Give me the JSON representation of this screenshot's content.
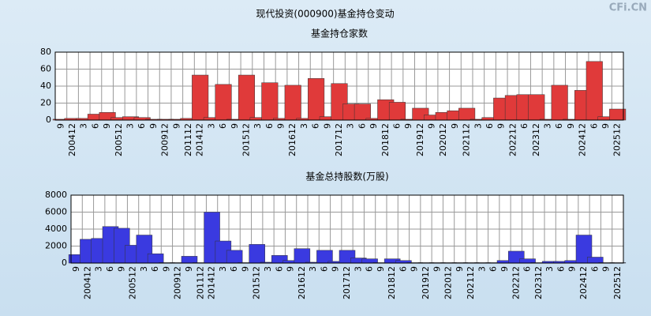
{
  "title": "现代投资(000900)基金持仓变动",
  "watermark": "CFi.CN",
  "chart_data": [
    {
      "type": "bar",
      "title": "基金持仓家数",
      "color": "#e03a3a",
      "grid": true,
      "categories": [
        "9",
        "200412",
        "3",
        "6",
        "9",
        "200512",
        "3",
        "6",
        "9",
        "200912",
        "9",
        "201112",
        "201412",
        "3",
        "6",
        "9",
        "201512",
        "3",
        "6",
        "9",
        "201612",
        "3",
        "6",
        "9",
        "201712",
        "3",
        "6",
        "9",
        "201812",
        "6",
        "9",
        "201912",
        "9",
        "202012",
        "9",
        "202112",
        "3",
        "6",
        "9",
        "202212",
        "6",
        "202312",
        "3",
        "6",
        "9",
        "202412",
        "6",
        "9",
        "202512"
      ],
      "values": [
        1,
        2,
        2,
        7,
        9,
        3,
        4,
        3,
        1,
        1,
        1,
        2,
        53,
        3,
        42,
        1,
        53,
        3,
        44,
        2,
        41,
        2,
        49,
        4,
        43,
        19,
        19,
        2,
        24,
        21,
        1,
        14,
        6,
        9,
        11,
        14,
        1,
        3,
        26,
        29,
        30,
        30,
        1,
        41,
        1,
        35,
        69,
        4,
        13
      ],
      "ylim": [
        0,
        80
      ],
      "yticks": [
        0,
        20,
        40,
        60,
        80
      ]
    },
    {
      "type": "bar",
      "title": "基金总持股数(万股)",
      "color": "#3a3ae0",
      "grid": true,
      "categories": [
        "9",
        "200412",
        "3",
        "6",
        "9",
        "200512",
        "3",
        "6",
        "9",
        "200912",
        "9",
        "201112",
        "201412",
        "3",
        "6",
        "9",
        "201512",
        "3",
        "6",
        "9",
        "201612",
        "3",
        "6",
        "9",
        "201712",
        "3",
        "6",
        "9",
        "201812",
        "6",
        "9",
        "201912",
        "9",
        "202012",
        "9",
        "202112",
        "3",
        "6",
        "9",
        "202212",
        "6",
        "202312",
        "3",
        "6",
        "9",
        "202412",
        "6",
        "9",
        "202512"
      ],
      "values": [
        1000,
        2800,
        2900,
        4300,
        4100,
        2100,
        3300,
        1100,
        50,
        50,
        800,
        50,
        6000,
        2600,
        1500,
        50,
        2200,
        100,
        900,
        300,
        1700,
        100,
        1500,
        200,
        1500,
        600,
        500,
        50,
        500,
        300,
        50,
        50,
        50,
        50,
        50,
        50,
        50,
        50,
        300,
        1400,
        500,
        50,
        200,
        200,
        300,
        3300,
        700,
        50,
        50
      ],
      "ylim": [
        0,
        8000
      ],
      "yticks": [
        0,
        2000,
        4000,
        6000,
        8000
      ]
    }
  ]
}
